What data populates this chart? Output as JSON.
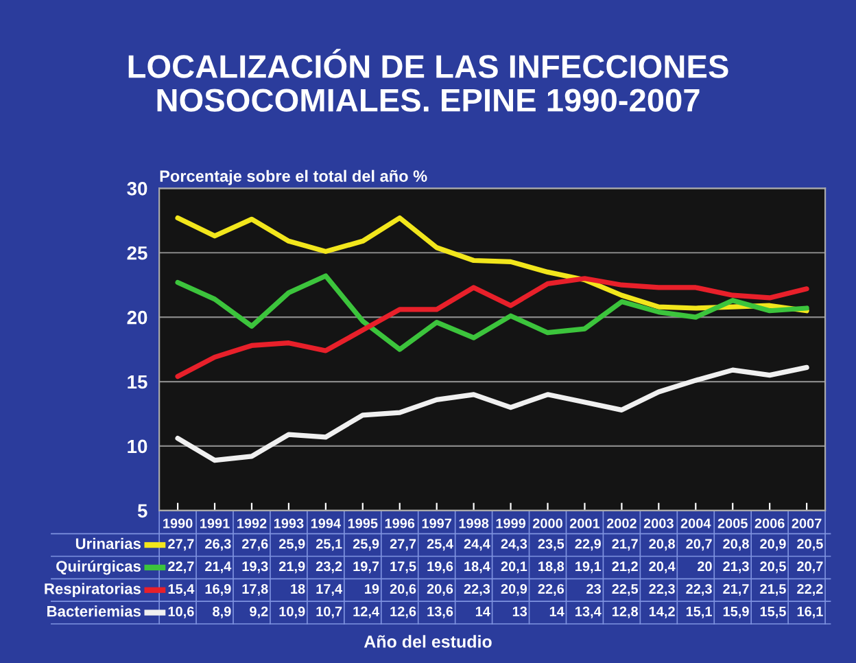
{
  "chart_data": {
    "type": "line",
    "title": "LOCALIZACIÓN DE LAS INFECCIONES\nNOSOCOMIALES. EPINE 1990-2007",
    "ylabel": "Porcentaje sobre el total del año %",
    "annotations": [
      "Año del estudio"
    ],
    "categories": [
      "1990",
      "1991",
      "1992",
      "1993",
      "1994",
      "1995",
      "1996",
      "1997",
      "1998",
      "1999",
      "2000",
      "2001",
      "2002",
      "2003",
      "2004",
      "2005",
      "2006",
      "2007"
    ],
    "series": [
      {
        "name": "Urinarias",
        "color": "#f2e61c",
        "values": [
          27.7,
          26.3,
          27.6,
          25.9,
          25.1,
          25.9,
          27.7,
          25.4,
          24.4,
          24.3,
          23.5,
          22.9,
          21.7,
          20.8,
          20.7,
          20.8,
          20.9,
          20.5
        ],
        "value_labels": [
          "27,7",
          "26,3",
          "27,6",
          "25,9",
          "25,1",
          "25,9",
          "27,7",
          "25,4",
          "24,4",
          "24,3",
          "23,5",
          "22,9",
          "21,7",
          "20,8",
          "20,7",
          "20,8",
          "20,9",
          "20,5"
        ]
      },
      {
        "name": "Quirúrgicas",
        "color": "#3cc43c",
        "values": [
          22.7,
          21.4,
          19.3,
          21.9,
          23.2,
          19.7,
          17.5,
          19.6,
          18.4,
          20.1,
          18.8,
          19.1,
          21.2,
          20.4,
          20,
          21.3,
          20.5,
          20.7
        ],
        "value_labels": [
          "22,7",
          "21,4",
          "19,3",
          "21,9",
          "23,2",
          "19,7",
          "17,5",
          "19,6",
          "18,4",
          "20,1",
          "18,8",
          "19,1",
          "21,2",
          "20,4",
          "20",
          "21,3",
          "20,5",
          "20,7"
        ]
      },
      {
        "name": "Respiratorias",
        "color": "#e8202a",
        "values": [
          15.4,
          16.9,
          17.8,
          18,
          17.4,
          19,
          20.6,
          20.6,
          22.3,
          20.9,
          22.6,
          23,
          22.5,
          22.3,
          22.3,
          21.7,
          21.5,
          22.2
        ],
        "value_labels": [
          "15,4",
          "16,9",
          "17,8",
          "18",
          "17,4",
          "19",
          "20,6",
          "20,6",
          "22,3",
          "20,9",
          "22,6",
          "23",
          "22,5",
          "22,3",
          "22,3",
          "21,7",
          "21,5",
          "22,2"
        ]
      },
      {
        "name": "Bacteriemias",
        "color": "#f0f0f0",
        "values": [
          10.6,
          8.9,
          9.2,
          10.9,
          10.7,
          12.4,
          12.6,
          13.6,
          14,
          13,
          14,
          13.4,
          12.8,
          14.2,
          15.1,
          15.9,
          15.5,
          16.1
        ],
        "value_labels": [
          "10,6",
          "8,9",
          "9,2",
          "10,9",
          "10,7",
          "12,4",
          "12,6",
          "13,6",
          "14",
          "13",
          "14",
          "13,4",
          "12,8",
          "14,2",
          "15,1",
          "15,9",
          "15,5",
          "16,1"
        ]
      }
    ],
    "ylim": [
      5,
      30
    ],
    "yticks": [
      5,
      10,
      15,
      20,
      25,
      30
    ],
    "grid": "y",
    "legend": "bottom",
    "marker": "none",
    "line_style": "solid"
  }
}
